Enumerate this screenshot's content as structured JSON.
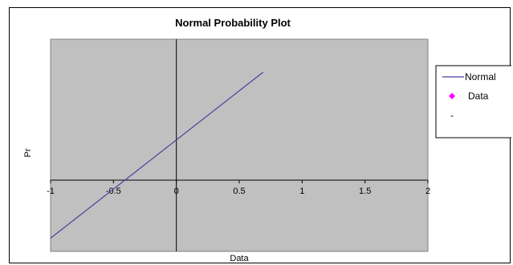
{
  "chart_data": {
    "type": "line",
    "title": "Normal Probability Plot",
    "xlabel": "Data",
    "ylabel": "Pr",
    "xlim": [
      -1,
      2
    ],
    "x_ticks": [
      "-1",
      "-0.5",
      "0",
      "0.5",
      "1",
      "1.5",
      "2"
    ],
    "grid": false,
    "legend_position": "right",
    "plot_background": "#c0c0c0",
    "series": [
      {
        "name": "Normal",
        "kind": "line",
        "color": "#4b3f9a",
        "x": [
          -1.0,
          0.69
        ],
        "y": [
          -0.5,
          0.93
        ]
      },
      {
        "name": "Data",
        "kind": "scatter",
        "marker": "diamond",
        "color": "#ff00ff",
        "x": [],
        "y": []
      },
      {
        "name": "-",
        "kind": "marker",
        "marker": "dash",
        "color": "#000000",
        "x": [],
        "y": []
      }
    ]
  }
}
